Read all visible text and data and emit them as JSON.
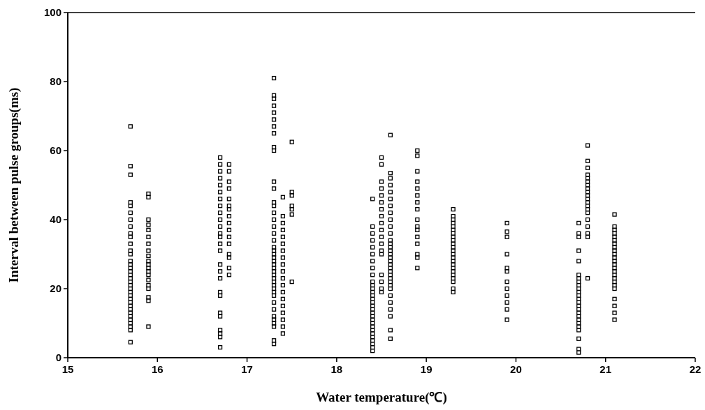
{
  "chart_data": {
    "type": "scatter",
    "xlabel": "Water temperature(℃)",
    "ylabel": "Interval between pulse groups(ms)",
    "xlim": [
      15,
      22
    ],
    "ylim": [
      0,
      100
    ],
    "xticks": [
      15,
      16,
      17,
      18,
      19,
      20,
      21,
      22
    ],
    "yticks": [
      0,
      20,
      40,
      60,
      80,
      100
    ],
    "marker": "square",
    "series": [
      {
        "color": "#000000",
        "x": [
          15.7,
          15.7,
          15.7,
          15.7,
          15.7,
          15.7,
          15.7,
          15.7,
          15.7,
          15.7,
          15.7,
          15.7,
          15.7,
          15.7,
          15.7,
          15.7,
          15.7,
          15.7,
          15.7,
          15.7,
          15.7,
          15.7,
          15.7,
          15.7,
          15.7,
          15.7,
          15.7,
          15.7,
          15.7,
          15.7,
          15.7,
          15.7,
          15.7,
          15.7,
          15.7,
          15.9,
          15.9,
          15.9,
          15.9,
          15.9,
          15.9,
          15.9,
          15.9,
          15.9,
          15.9,
          15.9,
          15.9,
          15.9,
          15.9,
          15.9,
          15.9,
          15.9,
          15.9,
          15.9,
          15.9,
          16.7,
          16.7,
          16.7,
          16.7,
          16.7,
          16.7,
          16.7,
          16.7,
          16.7,
          16.7,
          16.7,
          16.7,
          16.7,
          16.7,
          16.7,
          16.7,
          16.7,
          16.7,
          16.7,
          16.7,
          16.7,
          16.7,
          16.7,
          16.7,
          16.7,
          16.7,
          16.8,
          16.8,
          16.8,
          16.8,
          16.8,
          16.8,
          16.8,
          16.8,
          16.8,
          16.8,
          16.8,
          16.8,
          16.8,
          16.8,
          16.8,
          16.8,
          17.3,
          17.3,
          17.3,
          17.3,
          17.3,
          17.3,
          17.3,
          17.3,
          17.3,
          17.3,
          17.3,
          17.3,
          17.3,
          17.3,
          17.3,
          17.3,
          17.3,
          17.3,
          17.3,
          17.3,
          17.3,
          17.3,
          17.3,
          17.3,
          17.3,
          17.3,
          17.3,
          17.3,
          17.3,
          17.3,
          17.3,
          17.3,
          17.3,
          17.3,
          17.3,
          17.3,
          17.3,
          17.3,
          17.3,
          17.3,
          17.3,
          17.3,
          17.4,
          17.4,
          17.4,
          17.4,
          17.4,
          17.4,
          17.4,
          17.4,
          17.4,
          17.4,
          17.4,
          17.4,
          17.4,
          17.4,
          17.4,
          17.4,
          17.4,
          17.4,
          17.4,
          17.5,
          17.5,
          17.5,
          17.5,
          17.5,
          17.5,
          17.5,
          18.4,
          18.4,
          18.4,
          18.4,
          18.4,
          18.4,
          18.4,
          18.4,
          18.4,
          18.4,
          18.4,
          18.4,
          18.4,
          18.4,
          18.4,
          18.4,
          18.4,
          18.4,
          18.4,
          18.4,
          18.4,
          18.4,
          18.4,
          18.4,
          18.4,
          18.4,
          18.4,
          18.4,
          18.4,
          18.4,
          18.5,
          18.5,
          18.5,
          18.5,
          18.5,
          18.5,
          18.5,
          18.5,
          18.5,
          18.5,
          18.5,
          18.5,
          18.5,
          18.5,
          18.5,
          18.5,
          18.5,
          18.5,
          18.6,
          18.6,
          18.6,
          18.6,
          18.6,
          18.6,
          18.6,
          18.6,
          18.6,
          18.6,
          18.6,
          18.6,
          18.6,
          18.6,
          18.6,
          18.6,
          18.6,
          18.6,
          18.6,
          18.6,
          18.6,
          18.6,
          18.6,
          18.6,
          18.6,
          18.6,
          18.6,
          18.6,
          18.6,
          18.6,
          18.6,
          18.6,
          18.9,
          18.9,
          18.9,
          18.9,
          18.9,
          18.9,
          18.9,
          18.9,
          18.9,
          18.9,
          18.9,
          18.9,
          18.9,
          18.9,
          18.9,
          18.9,
          19.3,
          19.3,
          19.3,
          19.3,
          19.3,
          19.3,
          19.3,
          19.3,
          19.3,
          19.3,
          19.3,
          19.3,
          19.3,
          19.3,
          19.3,
          19.3,
          19.3,
          19.3,
          19.3,
          19.3,
          19.3,
          19.3,
          19.3,
          19.9,
          19.9,
          19.9,
          19.9,
          19.9,
          19.9,
          19.9,
          19.9,
          19.9,
          19.9,
          19.9,
          19.9,
          20.7,
          20.7,
          20.7,
          20.7,
          20.7,
          20.7,
          20.7,
          20.7,
          20.7,
          20.7,
          20.7,
          20.7,
          20.7,
          20.7,
          20.7,
          20.7,
          20.7,
          20.7,
          20.7,
          20.7,
          20.7,
          20.7,
          20.7,
          20.7,
          20.7,
          20.8,
          20.8,
          20.8,
          20.8,
          20.8,
          20.8,
          20.8,
          20.8,
          20.8,
          20.8,
          20.8,
          20.8,
          20.8,
          20.8,
          20.8,
          20.8,
          20.8,
          20.8,
          20.8,
          20.8,
          21.1,
          21.1,
          21.1,
          21.1,
          21.1,
          21.1,
          21.1,
          21.1,
          21.1,
          21.1,
          21.1,
          21.1,
          21.1,
          21.1,
          21.1,
          21.1,
          21.1,
          21.1,
          21.1,
          21.1,
          21.1,
          21.1,
          21.1,
          21.1
        ],
        "values": [
          67,
          55.5,
          53,
          45,
          44,
          42,
          40,
          38,
          36,
          35,
          33,
          31,
          30,
          28,
          27,
          26,
          25,
          24,
          23,
          22,
          21,
          20,
          19,
          18,
          17,
          16,
          15,
          14,
          13,
          12,
          11,
          10,
          9,
          8,
          4.5,
          47.5,
          46.5,
          40,
          38.5,
          37,
          35,
          33,
          31,
          29.5,
          28,
          27,
          26,
          25,
          24,
          22.5,
          21,
          20,
          17.5,
          16.5,
          9,
          58,
          56,
          54,
          52,
          50,
          48,
          46,
          44,
          42,
          40,
          38,
          36,
          35,
          33,
          31,
          27,
          25,
          23,
          19,
          18,
          13,
          12,
          8,
          7,
          6,
          3,
          56,
          54,
          51,
          49,
          46,
          44,
          43,
          41,
          39,
          37,
          35,
          33,
          30,
          29,
          26,
          24,
          81,
          76,
          75,
          73,
          71,
          69,
          67,
          65,
          61,
          60,
          51,
          49,
          45,
          44,
          42,
          40,
          38,
          36,
          34,
          32,
          31,
          30,
          29,
          28,
          27,
          26,
          25,
          24,
          23,
          22,
          21,
          20,
          19,
          18,
          16,
          14,
          12,
          11,
          10,
          9,
          5,
          4,
          46.5,
          41,
          39,
          37,
          35,
          33,
          31,
          29,
          27,
          25,
          23,
          21,
          19,
          17,
          15,
          13,
          11,
          9,
          7,
          62.5,
          48,
          47,
          44,
          43,
          41.5,
          22,
          46,
          38,
          36,
          34,
          32,
          30,
          28,
          26,
          24,
          22,
          21,
          20,
          19,
          18,
          17,
          16,
          15,
          14,
          13,
          12,
          11,
          10,
          9,
          8,
          7,
          6,
          5,
          4,
          3,
          2,
          58,
          56,
          51,
          49,
          47,
          45,
          43,
          41,
          39,
          37,
          35,
          33,
          31,
          30,
          24,
          22,
          20,
          19,
          64.5,
          53.5,
          52,
          50,
          48,
          46,
          44,
          42,
          40,
          38,
          36,
          34,
          33,
          32,
          31,
          30,
          29,
          28,
          27,
          26,
          25,
          24,
          23,
          22,
          21,
          20,
          18,
          16,
          14,
          12,
          8,
          5.5,
          60,
          58.5,
          54,
          51,
          49,
          47,
          45,
          43,
          40,
          38,
          37,
          35,
          33,
          30,
          29,
          26,
          43,
          41,
          40,
          39,
          38,
          37,
          36,
          35,
          34,
          33,
          32,
          31,
          30,
          29,
          28,
          27,
          26,
          25,
          24,
          23,
          22,
          20,
          19,
          39,
          36.5,
          35,
          30,
          26,
          25,
          22,
          20,
          18,
          16,
          14,
          11,
          39,
          36,
          35,
          31,
          28,
          24,
          23,
          22,
          21,
          20,
          19,
          18,
          17,
          16,
          15,
          14,
          13,
          12,
          11,
          10,
          9,
          8,
          5.5,
          2.5,
          1.5,
          61.5,
          57,
          55,
          53,
          52,
          51,
          50,
          49,
          48,
          47,
          46,
          45,
          44,
          43,
          42,
          40,
          38,
          36,
          35,
          23,
          41.5,
          38,
          37,
          36,
          35,
          34,
          33,
          32,
          31,
          30,
          29,
          28,
          27,
          26,
          25,
          24,
          23,
          22,
          21,
          20,
          17,
          15,
          13,
          11
        ]
      }
    ]
  }
}
